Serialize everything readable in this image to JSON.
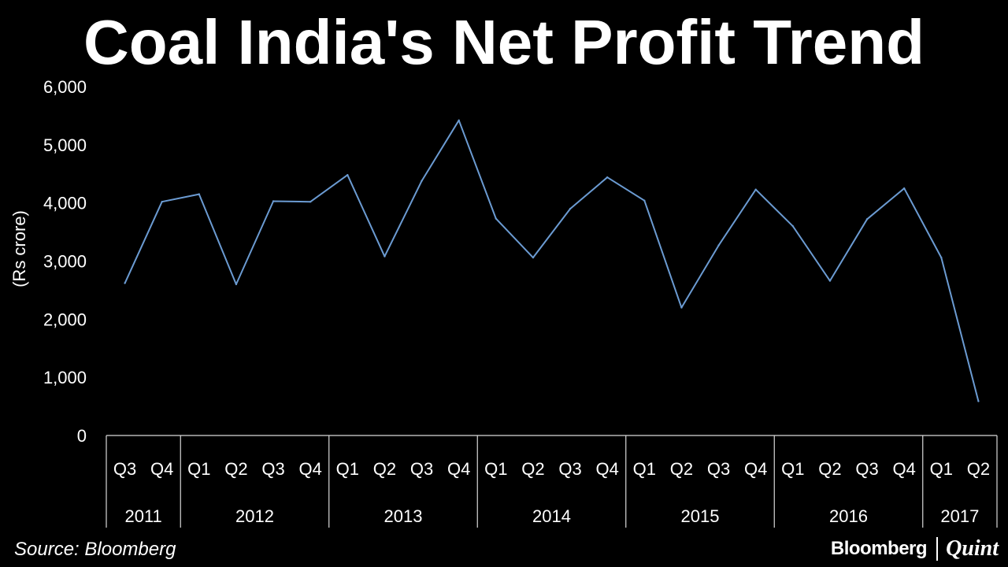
{
  "chart_data": {
    "type": "line",
    "title": "Coal India's Net Profit Trend",
    "ylabel": "(Rs crore)",
    "xlabel": "",
    "ylim": [
      0,
      6000
    ],
    "yticks": [
      0,
      1000,
      2000,
      3000,
      4000,
      5000,
      6000
    ],
    "ytick_labels": [
      "0",
      "1,000",
      "2,000",
      "3,000",
      "4,000",
      "5,000",
      "6,000"
    ],
    "categories": [
      "Q3",
      "Q4",
      "Q1",
      "Q2",
      "Q3",
      "Q4",
      "Q1",
      "Q2",
      "Q3",
      "Q4",
      "Q1",
      "Q2",
      "Q3",
      "Q4",
      "Q1",
      "Q2",
      "Q3",
      "Q4",
      "Q1",
      "Q2",
      "Q3",
      "Q4",
      "Q1",
      "Q2"
    ],
    "year_groups": [
      {
        "label": "2011",
        "count": 2
      },
      {
        "label": "2012",
        "count": 4
      },
      {
        "label": "2013",
        "count": 4
      },
      {
        "label": "2014",
        "count": 4
      },
      {
        "label": "2015",
        "count": 4
      },
      {
        "label": "2016",
        "count": 4
      },
      {
        "label": "2017",
        "count": 2
      }
    ],
    "series": [
      {
        "name": "Net Profit",
        "color": "#6b9bd2",
        "values": [
          2620,
          4020,
          4150,
          2600,
          4030,
          4020,
          4480,
          3080,
          4380,
          5420,
          3730,
          3060,
          3900,
          4440,
          4040,
          2200,
          3270,
          4230,
          3600,
          2660,
          3720,
          4250,
          3060,
          590
        ]
      }
    ],
    "grid": false,
    "legend": "none"
  },
  "footer": {
    "source": "Source: Bloomberg",
    "brand_left": "Bloomberg",
    "brand_right": "Quint"
  },
  "colors": {
    "background": "#000000",
    "text": "#ffffff",
    "axis": "#d9d9d9"
  }
}
